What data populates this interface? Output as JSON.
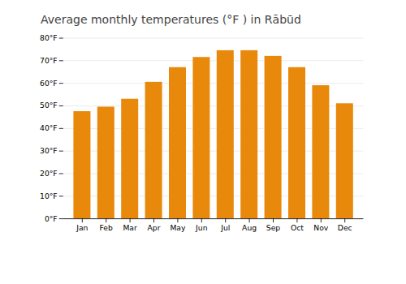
{
  "chart_data": {
    "type": "bar",
    "title": "Average monthly temperatures (°F ) in Rābūd",
    "categories": [
      "Jan",
      "Feb",
      "Mar",
      "Apr",
      "May",
      "Jun",
      "Jul",
      "Aug",
      "Sep",
      "Oct",
      "Nov",
      "Dec"
    ],
    "values": [
      47.5,
      49.5,
      53.0,
      60.5,
      67.0,
      71.5,
      74.5,
      74.5,
      72.0,
      67.0,
      59.0,
      51.0
    ],
    "color": "#E8890C",
    "ylim": [
      0,
      80
    ],
    "yticks": [
      {
        "value": 0,
        "label": "0°F"
      },
      {
        "value": 10,
        "label": "10°F"
      },
      {
        "value": 20,
        "label": "20°F"
      },
      {
        "value": 30,
        "label": "30°F"
      },
      {
        "value": 40,
        "label": "40°F"
      },
      {
        "value": 50,
        "label": "50°F"
      },
      {
        "value": 60,
        "label": "60°F"
      },
      {
        "value": 70,
        "label": "70°F"
      },
      {
        "value": 80,
        "label": "80°F"
      }
    ],
    "grid": true
  }
}
